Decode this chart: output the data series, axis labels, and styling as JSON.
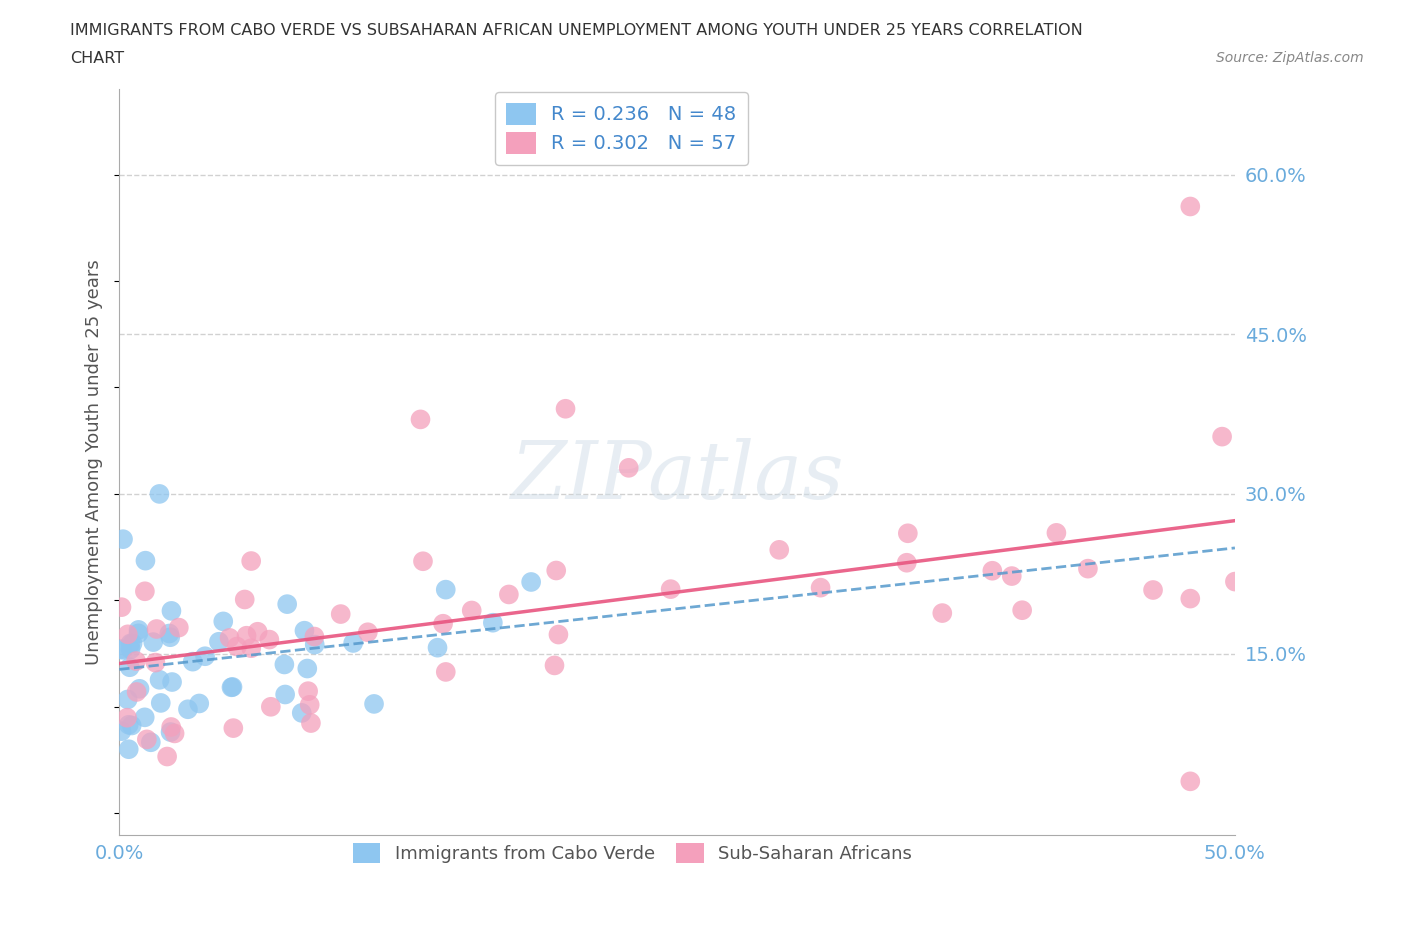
{
  "title_line1": "IMMIGRANTS FROM CABO VERDE VS SUBSAHARAN AFRICAN UNEMPLOYMENT AMONG YOUTH UNDER 25 YEARS CORRELATION",
  "title_line2": "CHART",
  "source": "Source: ZipAtlas.com",
  "ylabel": "Unemployment Among Youth under 25 years",
  "xlim": [
    0.0,
    0.5
  ],
  "ylim": [
    -0.02,
    0.68
  ],
  "ytick_right": [
    0.15,
    0.3,
    0.45,
    0.6
  ],
  "ytick_right_labels": [
    "15.0%",
    "30.0%",
    "45.0%",
    "60.0%"
  ],
  "legend_entry1": "R = 0.236   N = 48",
  "legend_entry2": "R = 0.302   N = 57",
  "legend_color1": "#8ec6f0",
  "legend_color2": "#f4a0bc",
  "watermark_text": "ZIPatlas",
  "cabo_verde_color": "#8ec6f0",
  "subsaharan_color": "#f4a0bc",
  "grid_color": "#cccccc",
  "bg_color": "#ffffff",
  "title_color": "#333333",
  "axis_label_color": "#555555",
  "tick_label_color": "#6aabdc",
  "cabo_trend_intercept": 0.122,
  "cabo_trend_slope": 0.355,
  "sub_trend_intercept": 0.128,
  "sub_trend_slope": 0.265
}
